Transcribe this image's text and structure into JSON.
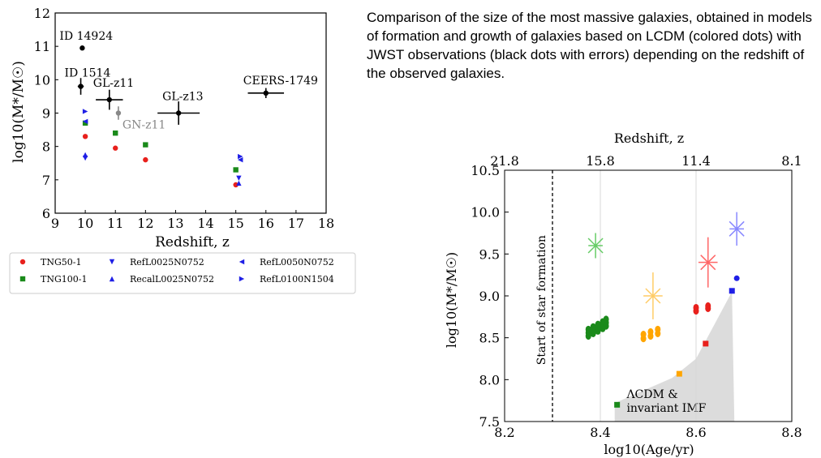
{
  "caption": "Comparison of the size of the most massive galaxies, obtained in models of formation and growth of galaxies based on LCDM (colored dots) with JWST observations (black dots with errors) depending on the redshift of the observed galaxies.",
  "colors": {
    "red": "#e8201c",
    "green": "#1a8a1a",
    "blue": "#1f1fe6",
    "black": "#000000",
    "gray": "#888888",
    "orange": "#ffa500",
    "shade": "#dcdcdc"
  },
  "chart_data": [
    {
      "type": "scatter",
      "xlabel": "Redshift, z",
      "ylabel": "log10(M*/M☉)",
      "xlim": [
        9,
        18
      ],
      "ylim": [
        6,
        12
      ],
      "xticks": [
        "9",
        "10",
        "11",
        "12",
        "13",
        "14",
        "15",
        "16",
        "17",
        "18"
      ],
      "yticks": [
        "6",
        "7",
        "8",
        "9",
        "10",
        "11",
        "12"
      ],
      "observations": [
        {
          "label": "ID 14924",
          "z": 9.9,
          "m": 10.95,
          "xerr": 0,
          "yerr": 0,
          "color": "black"
        },
        {
          "label": "ID 1514",
          "z": 9.85,
          "m": 9.8,
          "xerr": 0.1,
          "yerr": 0.25,
          "color": "black"
        },
        {
          "label": "GL-z11",
          "z": 10.8,
          "m": 9.4,
          "xerr": 0.45,
          "yerr": 0.3,
          "color": "black"
        },
        {
          "label": "GN-z11",
          "z": 11.1,
          "m": 9.0,
          "xerr": 0.0,
          "yerr": 0.2,
          "color": "gray"
        },
        {
          "label": "GL-z13",
          "z": 13.1,
          "m": 9.0,
          "xerr": 0.7,
          "yerr": 0.35,
          "color": "black"
        },
        {
          "label": "CEERS-1749",
          "z": 16.0,
          "m": 9.6,
          "xerr": 0.6,
          "yerr": 0.15,
          "color": "black"
        }
      ],
      "series": [
        {
          "name": "TNG50-1",
          "marker": "circle",
          "color": "red",
          "points": [
            [
              10,
              8.3
            ],
            [
              11,
              7.95
            ],
            [
              12,
              7.6
            ],
            [
              15,
              6.85
            ]
          ]
        },
        {
          "name": "TNG100-1",
          "marker": "square",
          "color": "green",
          "points": [
            [
              10,
              8.7
            ],
            [
              11,
              8.4
            ],
            [
              12,
              8.05
            ],
            [
              15,
              7.3
            ]
          ]
        },
        {
          "name": "RefL0025N0752",
          "marker": "tri-down",
          "color": "blue",
          "points": [
            [
              10,
              7.65
            ],
            [
              15.1,
              7.05
            ]
          ]
        },
        {
          "name": "RecalL0025N0752",
          "marker": "tri-up",
          "color": "blue",
          "points": [
            [
              10,
              7.75
            ],
            [
              15.1,
              6.9
            ]
          ]
        },
        {
          "name": "RefL0050N0752",
          "marker": "tri-left",
          "color": "blue",
          "points": [
            [
              10,
              8.75
            ],
            [
              15.15,
              7.6
            ]
          ]
        },
        {
          "name": "RefL0100N1504",
          "marker": "tri-right",
          "color": "blue",
          "points": [
            [
              10,
              9.05
            ],
            [
              15.15,
              7.7
            ]
          ]
        }
      ]
    },
    {
      "type": "scatter",
      "xlabel": "log10(Age/yr)",
      "ylabel": "log10(M*/M☉)",
      "top_xlabel": "Redshift, z",
      "xlim": [
        8.2,
        8.8
      ],
      "ylim": [
        7.5,
        10.5
      ],
      "xticks": [
        "8.2",
        "8.4",
        "8.6",
        "8.8"
      ],
      "yticks": [
        "7.5",
        "8.0",
        "8.5",
        "9.0",
        "9.5",
        "10.0",
        "10.5"
      ],
      "top_ticks": [
        {
          "label": "21.8",
          "x": 8.2
        },
        {
          "label": "15.8",
          "x": 8.4
        },
        {
          "label": "11.4",
          "x": 8.6
        },
        {
          "label": "8.1",
          "x": 8.8
        }
      ],
      "vline": {
        "x": 8.3,
        "label": "Start of star formation"
      },
      "shade_label": [
        "ΛCDM &",
        "invariant IMF"
      ],
      "shade_polygon": [
        [
          8.43,
          7.5
        ],
        [
          8.43,
          7.72
        ],
        [
          8.55,
          8.02
        ],
        [
          8.6,
          8.25
        ],
        [
          8.675,
          9.05
        ],
        [
          8.68,
          7.5
        ]
      ],
      "stars": [
        {
          "x": 8.39,
          "y": 9.6,
          "xerr": 0.015,
          "yerr": 0.15,
          "color": "#66cc66"
        },
        {
          "x": 8.51,
          "y": 9.0,
          "xerr": 0.02,
          "yerr": 0.28,
          "color": "#ffcc66"
        },
        {
          "x": 8.625,
          "y": 9.4,
          "xerr": 0.02,
          "yerr": 0.3,
          "color": "#ff6666"
        },
        {
          "x": 8.685,
          "y": 9.8,
          "xerr": 0.015,
          "yerr": 0.2,
          "color": "#8888ff"
        }
      ],
      "clusters": [
        {
          "color": "green",
          "points": [
            [
              8.375,
              8.52
            ],
            [
              8.375,
              8.56
            ],
            [
              8.375,
              8.6
            ],
            [
              8.385,
              8.55
            ],
            [
              8.385,
              8.59
            ],
            [
              8.385,
              8.63
            ],
            [
              8.395,
              8.58
            ],
            [
              8.395,
              8.62
            ],
            [
              8.395,
              8.66
            ],
            [
              8.405,
              8.61
            ],
            [
              8.405,
              8.65
            ],
            [
              8.405,
              8.69
            ],
            [
              8.412,
              8.64
            ],
            [
              8.412,
              8.68
            ],
            [
              8.412,
              8.72
            ]
          ]
        },
        {
          "color": "orange",
          "points": [
            [
              8.49,
              8.49
            ],
            [
              8.49,
              8.54
            ],
            [
              8.505,
              8.52
            ],
            [
              8.505,
              8.57
            ],
            [
              8.52,
              8.55
            ],
            [
              8.52,
              8.6
            ]
          ]
        },
        {
          "color": "red",
          "points": [
            [
              8.6,
              8.82
            ],
            [
              8.6,
              8.86
            ],
            [
              8.625,
              8.85
            ],
            [
              8.625,
              8.88
            ]
          ]
        }
      ],
      "points": [
        {
          "x": 8.435,
          "y": 7.7,
          "marker": "square",
          "color": "green"
        },
        {
          "x": 8.565,
          "y": 8.07,
          "marker": "square",
          "color": "orange"
        },
        {
          "x": 8.62,
          "y": 8.43,
          "marker": "square",
          "color": "red"
        },
        {
          "x": 8.675,
          "y": 9.06,
          "marker": "square",
          "color": "blue"
        },
        {
          "x": 8.685,
          "y": 9.21,
          "marker": "circle",
          "color": "blue"
        }
      ]
    }
  ]
}
